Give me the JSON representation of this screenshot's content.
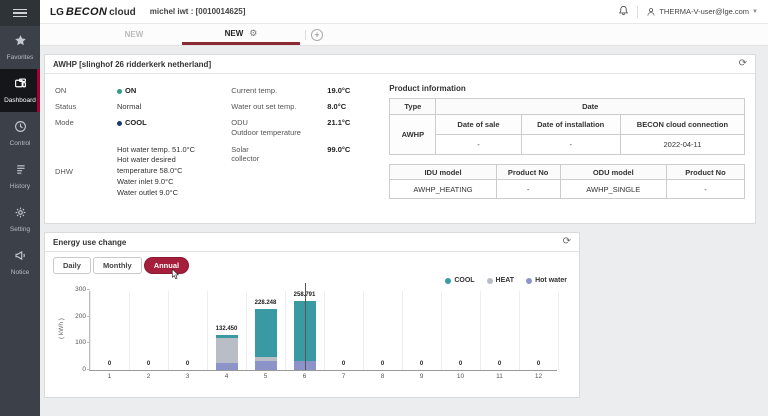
{
  "header": {
    "logo_lg": "LG",
    "logo_becon": "BECON",
    "logo_cloud": "cloud",
    "user_context": "michel iwt : [0010014625]",
    "account_email": "THERMA-V-user@lge.com"
  },
  "tabs": {
    "inactive_label": "NEW",
    "active_label": "NEW",
    "add_label": "+"
  },
  "sidebar": {
    "items": [
      {
        "label": "Favorites",
        "icon": "star-icon",
        "active": false
      },
      {
        "label": "Dashboard",
        "icon": "dashboard-icon",
        "active": true
      },
      {
        "label": "Control",
        "icon": "control-icon",
        "active": false
      },
      {
        "label": "History",
        "icon": "history-icon",
        "active": false
      },
      {
        "label": "Setting",
        "icon": "gear-icon",
        "active": false
      },
      {
        "label": "Notice",
        "icon": "megaphone-icon",
        "active": false
      }
    ]
  },
  "device_panel": {
    "title": "AWHP [slinghof 26 ridderkerk netherland]",
    "power_label": "ON",
    "power_value": "ON",
    "power_dot_color": "#2f9d86",
    "status_label": "Status",
    "status_value": "Normal",
    "mode_label": "Mode",
    "mode_value": "COOL",
    "mode_dot_color": "#1b3c6e",
    "dhw_label": "DHW",
    "dhw_lines": [
      "Hot water temp. 51.0°C",
      "Hot water desired",
      "temperature 58.0°C",
      "Water inlet 9.0°C",
      "Water outlet 9.0°C"
    ],
    "current_temp_label": "Current temp.",
    "current_temp_value": "19.0°C",
    "water_out_label": "Water out set temp.",
    "water_out_value": "8.0°C",
    "odu_label_line1": "ODU",
    "odu_label_line2": "Outdoor temperature",
    "odu_value": "21.1°C",
    "solar_label_line1": "Solar",
    "solar_label_line2": "collector",
    "solar_value": "99.0°C"
  },
  "product_info": {
    "title": "Product information",
    "table1": {
      "type_header": "Type",
      "date_header": "Date",
      "sub_headers": [
        "Date of sale",
        "Date of installation",
        "BECON cloud connection"
      ],
      "type_value": "AWHP",
      "values": [
        "-",
        "-",
        "2022-04-11"
      ]
    },
    "table2": {
      "headers": [
        "IDU model",
        "Product No",
        "ODU model",
        "Product No"
      ],
      "values": [
        "AWHP_HEATING",
        "-",
        "AWHP_SINGLE",
        "-"
      ]
    }
  },
  "energy_panel": {
    "title": "Energy use change",
    "buttons": {
      "daily": "Daily",
      "monthly": "Monthly",
      "annual": "Annual"
    },
    "active_button": "Annual"
  },
  "chart_data": {
    "type": "bar",
    "stacked": true,
    "ylabel": "( kWh )",
    "ylim": [
      0,
      300
    ],
    "yticks": [
      0,
      100,
      200,
      300
    ],
    "categories": [
      "1",
      "2",
      "3",
      "4",
      "5",
      "6",
      "7",
      "8",
      "9",
      "10",
      "11",
      "12"
    ],
    "series": [
      {
        "name": "COOL",
        "color": "#3a9aa3",
        "values": [
          0,
          0,
          0,
          12.45,
          178.248,
          223.791,
          0,
          0,
          0,
          0,
          0,
          0
        ]
      },
      {
        "name": "HEAT",
        "color": "#b9bec6",
        "values": [
          0,
          0,
          0,
          95,
          18,
          0,
          0,
          0,
          0,
          0,
          0,
          0
        ]
      },
      {
        "name": "Hot water",
        "color": "#8b93c9",
        "values": [
          0,
          0,
          0,
          25,
          32,
          35,
          0,
          0,
          0,
          0,
          0,
          0
        ]
      }
    ],
    "stack_order_bottom_to_top": [
      "Hot water",
      "HEAT",
      "COOL"
    ],
    "total_labels": [
      "0",
      "0",
      "0",
      "132.450",
      "228.248",
      "258.791",
      "0",
      "0",
      "0",
      "0",
      "0",
      "0"
    ],
    "legend_position": "top-right",
    "hover_index": 5,
    "grid": "vertical"
  }
}
